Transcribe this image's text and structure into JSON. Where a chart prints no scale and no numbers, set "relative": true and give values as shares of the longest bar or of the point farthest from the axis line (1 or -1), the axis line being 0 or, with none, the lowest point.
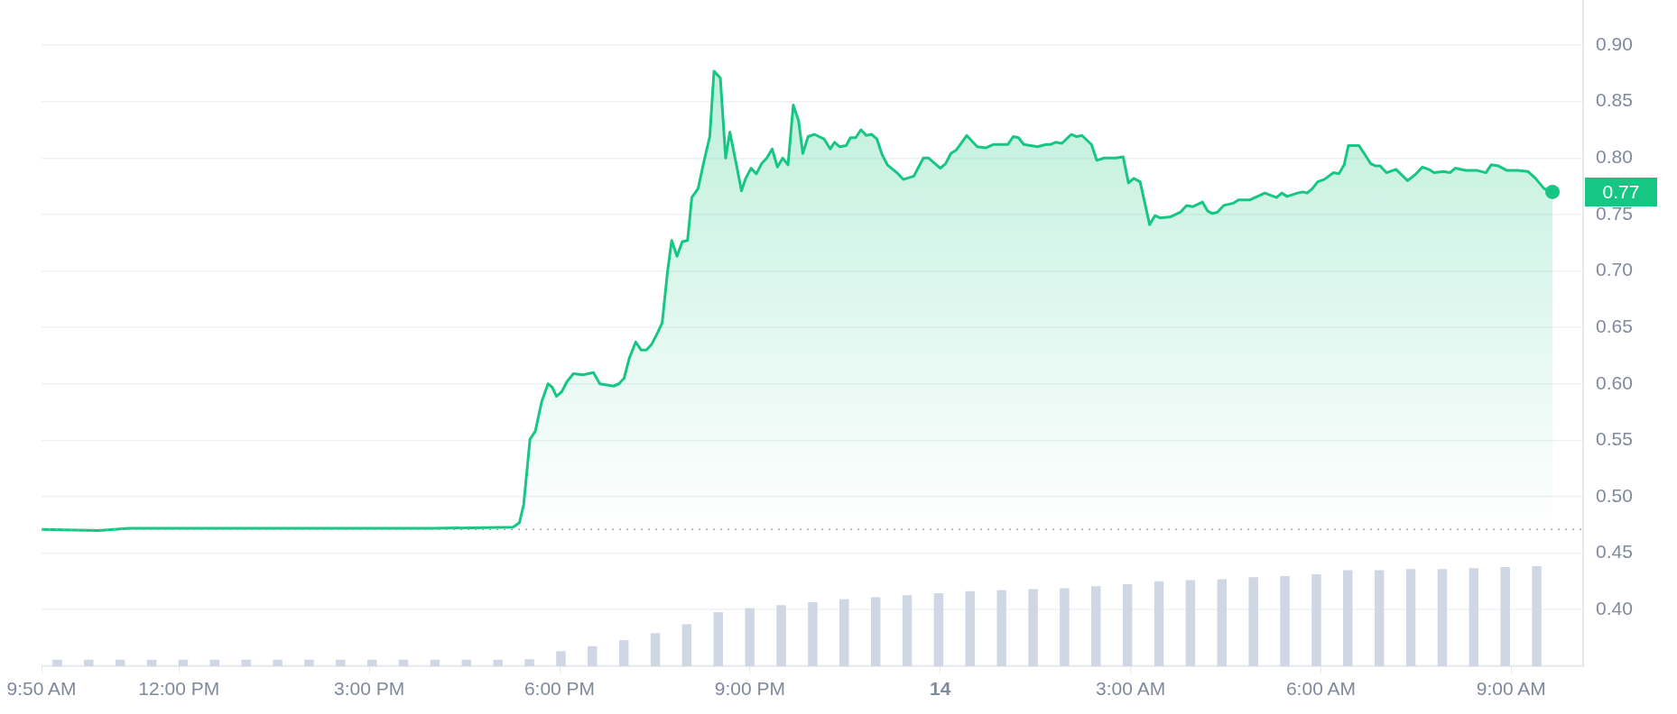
{
  "chart_data": [
    {
      "type": "area",
      "xlim": [
        "--03-13T09:50",
        "--03-14T10:08"
      ],
      "ylim": [
        0.35,
        0.94
      ],
      "xticks": [
        {
          "value": "--03-13T09:50",
          "label": "9:50 AM"
        },
        {
          "value": "--03-13T12:00",
          "label": "12:00 PM"
        },
        {
          "value": "--03-13T15:00",
          "label": "3:00 PM"
        },
        {
          "value": "--03-13T18:00",
          "label": "6:00 PM"
        },
        {
          "value": "--03-13T21:00",
          "label": "9:00 PM"
        },
        {
          "value": "--03-14",
          "label": "14"
        },
        {
          "value": "--03-14T03:00",
          "label": "3:00 AM"
        },
        {
          "value": "--03-14T06:00",
          "label": "6:00 AM"
        },
        {
          "value": "--03-14T09:00",
          "label": "9:00 AM"
        }
      ],
      "yticks": [
        {
          "value": 0.4,
          "label": "0.40"
        },
        {
          "value": 0.45,
          "label": "0.45"
        },
        {
          "value": 0.5,
          "label": "0.50"
        },
        {
          "value": 0.55,
          "label": "0.55"
        },
        {
          "value": 0.6,
          "label": "0.60"
        },
        {
          "value": 0.65,
          "label": "0.65"
        },
        {
          "value": 0.7,
          "label": "0.70"
        },
        {
          "value": 0.75,
          "label": "0.75"
        },
        {
          "value": 0.8,
          "label": "0.80"
        },
        {
          "value": 0.85,
          "label": "0.85"
        },
        {
          "value": 0.9,
          "label": "0.90"
        }
      ],
      "grid": "y",
      "legend": false,
      "marker": "none",
      "line_style": "solid",
      "series": [
        {
          "color": "#16c784",
          "x": [
            "--03-13T09:50",
            "--03-13T10:44",
            "--03-13T11:13",
            "--03-13T13:17",
            "--03-13T16:01",
            "--03-13T17:16",
            "--03-13T17:22",
            "--03-13T17:26",
            "--03-13T17:32",
            "--03-13T17:37",
            "--03-13T17:43",
            "--03-13T17:49",
            "--03-13T17:53",
            "--03-13T17:57",
            "--03-13T18:02",
            "--03-13T18:07",
            "--03-13T18:13",
            "--03-13T18:22",
            "--03-13T18:32",
            "--03-13T18:38",
            "--03-13T18:51",
            "--03-13T18:56",
            "--03-13T19:01",
            "--03-13T19:06",
            "--03-13T19:12",
            "--03-13T19:17",
            "--03-13T19:22",
            "--03-13T19:27",
            "--03-13T19:32",
            "--03-13T19:37",
            "--03-13T19:42",
            "--03-13T19:46",
            "--03-13T19:51",
            "--03-13T19:56",
            "--03-13T20:01",
            "--03-13T20:05",
            "--03-13T20:11",
            "--03-13T20:16",
            "--03-13T20:22",
            "--03-13T20:26",
            "--03-13T20:32",
            "--03-13T20:37",
            "--03-13T20:41",
            "--03-13T20:47",
            "--03-13T20:52",
            "--03-13T20:56",
            "--03-13T21:01",
            "--03-13T21:06",
            "--03-13T21:11",
            "--03-13T21:16",
            "--03-13T21:21",
            "--03-13T21:26",
            "--03-13T21:31",
            "--03-13T21:36",
            "--03-13T21:41",
            "--03-13T21:46",
            "--03-13T21:50",
            "--03-13T21:55",
            "--03-13T22:01",
            "--03-13T22:10",
            "--03-13T22:16",
            "--03-13T22:20",
            "--03-13T22:25",
            "--03-13T22:31",
            "--03-13T22:35",
            "--03-13T22:40",
            "--03-13T22:45",
            "--03-13T22:50",
            "--03-13T22:55",
            "--03-13T23:00",
            "--03-13T23:05",
            "--03-13T23:10",
            "--03-13T23:19",
            "--03-13T23:25",
            "--03-13T23:35",
            "--03-13T23:44",
            "--03-13T23:49",
            "--03-14T00:00",
            "--03-14T00:05",
            "--03-14T00:10",
            "--03-14T00:15",
            "--03-14T00:25",
            "--03-14T00:35",
            "--03-14T00:43",
            "--03-14T00:50",
            "--03-14T01:04",
            "--03-14T01:09",
            "--03-14T01:14",
            "--03-14T01:19",
            "--03-14T01:32",
            "--03-14T01:40",
            "--03-14T01:44",
            "--03-14T01:49",
            "--03-14T01:55",
            "--03-14T02:04",
            "--03-14T02:09",
            "--03-14T02:14",
            "--03-14T02:23",
            "--03-14T02:28",
            "--03-14T02:35",
            "--03-14T02:46",
            "--03-14T02:53",
            "--03-14T02:58",
            "--03-14T03:03",
            "--03-14T03:09",
            "--03-14T03:18",
            "--03-14T03:23",
            "--03-14T03:28",
            "--03-14T03:38",
            "--03-14T03:47",
            "--03-14T03:53",
            "--03-14T03:59",
            "--03-14T04:08",
            "--03-14T04:13",
            "--03-14T04:17",
            "--03-14T04:22",
            "--03-14T04:28",
            "--03-14T04:37",
            "--03-14T04:42",
            "--03-14T04:53",
            "--03-14T05:07",
            "--03-14T05:18",
            "--03-14T05:23",
            "--03-14T05:28",
            "--03-14T05:38",
            "--03-14T05:43",
            "--03-14T05:47",
            "--03-14T05:52",
            "--03-14T05:57",
            "--03-14T06:03",
            "--03-14T06:12",
            "--03-14T06:17",
            "--03-14T06:22",
            "--03-14T06:26",
            "--03-14T06:36",
            "--03-14T06:41",
            "--03-14T06:47",
            "--03-14T06:52",
            "--03-14T06:56",
            "--03-14T07:02",
            "--03-14T07:11",
            "--03-14T07:22",
            "--03-14T07:30",
            "--03-14T07:36",
            "--03-14T07:42",
            "--03-14T07:47",
            "--03-14T07:56",
            "--03-14T08:02",
            "--03-14T08:07",
            "--03-14T08:17",
            "--03-14T08:28",
            "--03-14T08:36",
            "--03-14T08:41",
            "--03-14T08:48",
            "--03-14T08:56",
            "--03-14T09:06",
            "--03-14T09:16",
            "--03-14T09:23",
            "--03-14T09:31",
            "--03-14T09:39"
          ],
          "values": [
            0.471,
            0.47,
            0.472,
            0.472,
            0.472,
            0.473,
            0.477,
            0.493,
            0.551,
            0.558,
            0.584,
            0.6,
            0.597,
            0.589,
            0.593,
            0.602,
            0.609,
            0.608,
            0.61,
            0.6,
            0.598,
            0.6,
            0.605,
            0.623,
            0.637,
            0.63,
            0.63,
            0.635,
            0.644,
            0.654,
            0.699,
            0.727,
            0.713,
            0.726,
            0.727,
            0.765,
            0.773,
            0.795,
            0.819,
            0.877,
            0.871,
            0.8,
            0.823,
            0.795,
            0.771,
            0.782,
            0.791,
            0.786,
            0.795,
            0.8,
            0.808,
            0.792,
            0.8,
            0.794,
            0.847,
            0.833,
            0.804,
            0.819,
            0.821,
            0.817,
            0.808,
            0.814,
            0.81,
            0.811,
            0.818,
            0.818,
            0.825,
            0.82,
            0.821,
            0.817,
            0.803,
            0.794,
            0.787,
            0.781,
            0.784,
            0.8,
            0.8,
            0.791,
            0.795,
            0.804,
            0.807,
            0.82,
            0.81,
            0.809,
            0.812,
            0.812,
            0.819,
            0.818,
            0.812,
            0.81,
            0.812,
            0.812,
            0.814,
            0.813,
            0.821,
            0.819,
            0.82,
            0.812,
            0.798,
            0.8,
            0.8,
            0.801,
            0.778,
            0.782,
            0.779,
            0.741,
            0.749,
            0.747,
            0.748,
            0.752,
            0.758,
            0.757,
            0.761,
            0.753,
            0.751,
            0.752,
            0.758,
            0.76,
            0.763,
            0.763,
            0.769,
            0.765,
            0.769,
            0.766,
            0.769,
            0.77,
            0.769,
            0.773,
            0.779,
            0.781,
            0.787,
            0.786,
            0.794,
            0.811,
            0.811,
            0.804,
            0.795,
            0.793,
            0.793,
            0.787,
            0.79,
            0.78,
            0.786,
            0.792,
            0.79,
            0.787,
            0.788,
            0.787,
            0.791,
            0.789,
            0.789,
            0.787,
            0.794,
            0.793,
            0.789,
            0.789,
            0.788,
            0.782,
            0.773,
            0.77
          ]
        }
      ],
      "ref_lines": [
        {
          "axis": "y",
          "value": 0.471,
          "color": "#a0a7b4",
          "line_style": "dotted"
        }
      ],
      "annotations": [
        "0.77"
      ]
    },
    {
      "type": "bar",
      "relative": true,
      "color": "#cfd6e4",
      "tick_labels": false,
      "categories": [
        null,
        null,
        null,
        null,
        null,
        null,
        null,
        null,
        null,
        null,
        null,
        null,
        null,
        null,
        null,
        null,
        null,
        null,
        null,
        null,
        null,
        null,
        null,
        null,
        null,
        null,
        null,
        null,
        null,
        null,
        null,
        null,
        null,
        null,
        null,
        null,
        null,
        null,
        null,
        null,
        null,
        null,
        null,
        null,
        null,
        null,
        null,
        null
      ],
      "values": [
        0.065,
        0.065,
        0.065,
        0.065,
        0.065,
        0.065,
        0.065,
        0.065,
        0.065,
        0.065,
        0.065,
        0.065,
        0.065,
        0.065,
        0.065,
        0.07,
        0.15,
        0.2,
        0.26,
        0.33,
        0.42,
        0.54,
        0.58,
        0.61,
        0.64,
        0.67,
        0.69,
        0.71,
        0.73,
        0.75,
        0.76,
        0.77,
        0.78,
        0.8,
        0.82,
        0.85,
        0.86,
        0.87,
        0.89,
        0.9,
        0.92,
        0.96,
        0.96,
        0.97,
        0.97,
        0.98,
        0.99,
        1
      ]
    }
  ]
}
